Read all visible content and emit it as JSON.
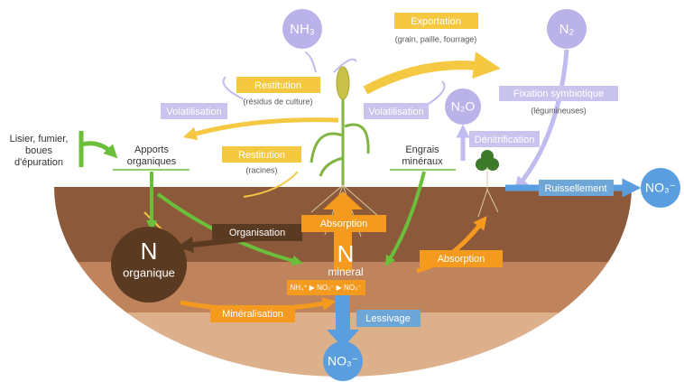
{
  "molecules": {
    "nh3": "NH₃",
    "n2": "N₂",
    "n2o": "N₂O",
    "no3_runoff": "NO₃⁻",
    "no3_leaching": "NO₃⁻"
  },
  "exportation": {
    "label": "Exportation",
    "detail": "(grain, paille, fourrage)"
  },
  "restitution_residues": {
    "label": "Restitution",
    "detail": "(résidus de culture)"
  },
  "volatilisation_left": "Volatilisation",
  "volatilisation_right": "Volatilisation",
  "fixation": {
    "label": "Fixation symbiotique",
    "detail": "(légumineuses)"
  },
  "denitrification": "Dénitrification",
  "organic_inputs_source": [
    "Lisier, fumier,",
    "boues",
    "d'épuration"
  ],
  "organic_inputs": [
    "Apports",
    "organiques"
  ],
  "restitution_roots": {
    "label": "Restitution",
    "detail": "(racines)"
  },
  "mineral_fertilizers": [
    "Engrais",
    "minéraux"
  ],
  "runoff": "Ruissellement",
  "organisation": "Organisation",
  "absorption_plant": "Absorption",
  "absorption_clover": "Absorption",
  "organic_n": {
    "symbol": "N",
    "label": "organique"
  },
  "mineral_n": {
    "symbol": "N",
    "label": "mineral"
  },
  "nitrification": "NH₄⁺ ▶ NO₂⁻ ▶ NO₃⁻",
  "mineralisation": "Minéralisation",
  "leaching": "Lessivage"
}
